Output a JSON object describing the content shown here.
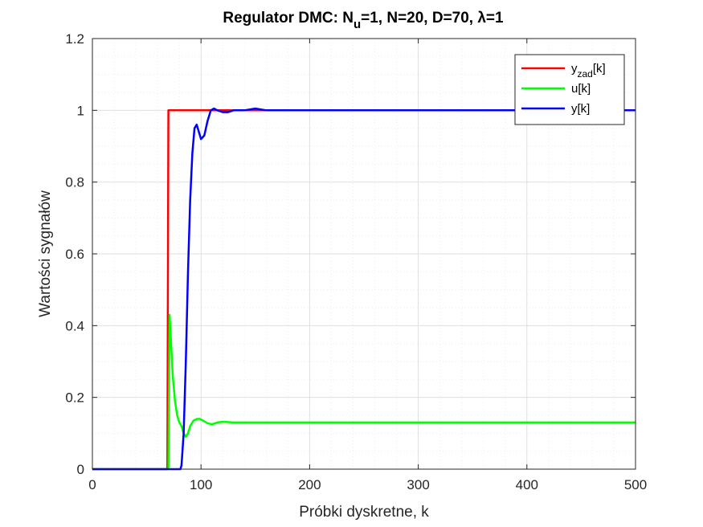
{
  "colors": {
    "background": "#ffffff",
    "axes": "#262626",
    "grid": "#dfdfdf",
    "minor_grid": "#eeeeee"
  },
  "chart_data": {
    "type": "line",
    "title": {
      "prefix": "Regulator DMC: N",
      "sub": "u",
      "suffix": "=1, N=20, D=70, λ=1"
    },
    "xlabel": "Próbki dyskretne, k",
    "ylabel": "Wartości sygnałów",
    "xlim": [
      0,
      500
    ],
    "ylim": [
      0,
      1.2
    ],
    "xticks": [
      0,
      100,
      200,
      300,
      400,
      500
    ],
    "xtick_labels": [
      "0",
      "100",
      "200",
      "300",
      "400",
      "500"
    ],
    "yticks": [
      0,
      0.2,
      0.4,
      0.6,
      0.8,
      1.0,
      1.2
    ],
    "ytick_labels": [
      "0",
      "0.2",
      "0.4",
      "0.6",
      "0.8",
      "1",
      "1.2"
    ],
    "grid": true,
    "minor_grid": true,
    "legend_position": "top-right",
    "series": [
      {
        "name": "y[k]",
        "legend_base": "y",
        "legend_sub": "zad",
        "legend_suffix": "[k]",
        "color": "#ff0000",
        "x": [
          0,
          69,
          69,
          70,
          500
        ],
        "y": [
          0,
          0,
          0.0,
          1,
          1
        ]
      },
      {
        "name": "u[k]",
        "legend_base": "u[k]",
        "legend_sub": "",
        "legend_suffix": "",
        "color": "#00ff00",
        "x": [
          0,
          70,
          71,
          72,
          74,
          76,
          78,
          80,
          82,
          84,
          86,
          88,
          90,
          93,
          96,
          99,
          102,
          106,
          110,
          115,
          120,
          130,
          140,
          150,
          500
        ],
        "y": [
          0,
          0,
          0.43,
          0.38,
          0.26,
          0.19,
          0.15,
          0.13,
          0.12,
          0.1,
          0.09,
          0.1,
          0.12,
          0.135,
          0.14,
          0.14,
          0.135,
          0.128,
          0.125,
          0.13,
          0.132,
          0.13,
          0.13,
          0.13,
          0.13
        ]
      },
      {
        "name": "y[k]",
        "legend_base": "y[k]",
        "legend_sub": "",
        "legend_suffix": "",
        "color": "#0000ff",
        "x": [
          0,
          81,
          82,
          84,
          86,
          88,
          90,
          92,
          94,
          96,
          98,
          100,
          103,
          106,
          109,
          112,
          115,
          120,
          125,
          130,
          135,
          140,
          150,
          160,
          500
        ],
        "y": [
          0,
          0,
          0.01,
          0.1,
          0.3,
          0.55,
          0.75,
          0.88,
          0.95,
          0.96,
          0.94,
          0.92,
          0.93,
          0.97,
          1.0,
          1.005,
          1.0,
          0.995,
          0.995,
          1.0,
          1.0,
          1.0,
          1.005,
          1.0,
          1.0
        ]
      }
    ]
  }
}
